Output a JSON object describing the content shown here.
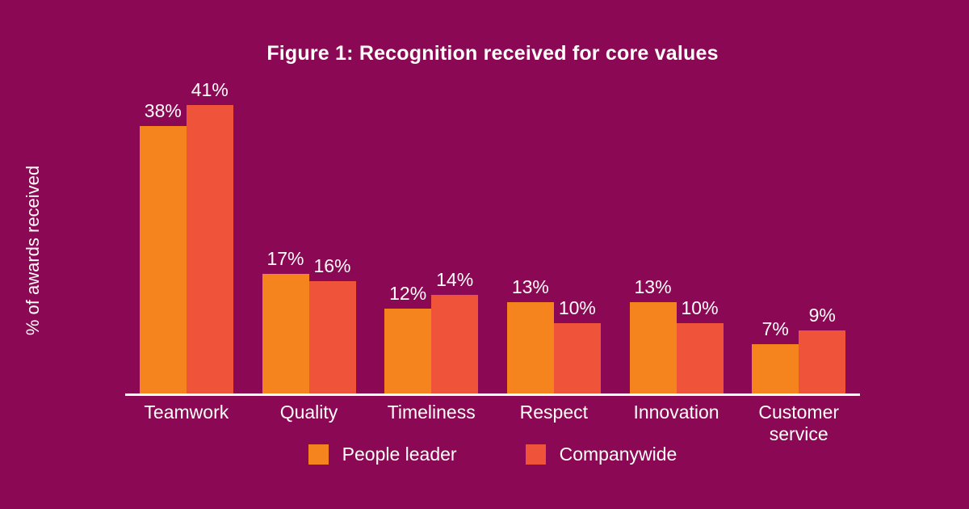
{
  "chart_data": {
    "type": "bar",
    "title": "Figure 1: Recognition received for core values",
    "xlabel": "",
    "ylabel": "% of awards received",
    "categories": [
      "Teamwork",
      "Quality",
      "Timeliness",
      "Respect",
      "Innovation",
      "Customer service"
    ],
    "series": [
      {
        "name": "People leader",
        "color": "#F5841E",
        "values": [
          38,
          17,
          12,
          13,
          13,
          7
        ]
      },
      {
        "name": "Companywide",
        "color": "#EF5339",
        "values": [
          41,
          16,
          14,
          10,
          10,
          9
        ]
      }
    ],
    "value_suffix": "%",
    "ylim": [
      0,
      45
    ],
    "grid": false,
    "legend_position": "bottom",
    "colors": {
      "background": "#8A0854",
      "axis_line": "#FFFFFF",
      "text": "#FFFDFB"
    }
  }
}
